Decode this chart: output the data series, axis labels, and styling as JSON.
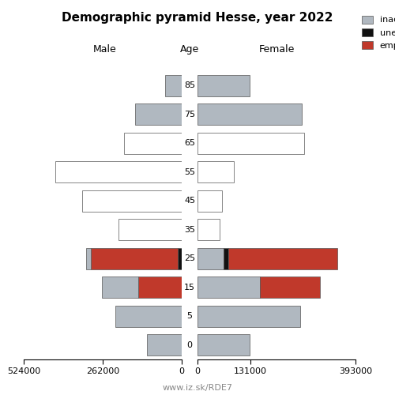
{
  "title": "Demographic pyramid Hesse, year 2022",
  "subtitle_left": "Male",
  "subtitle_center": "Age",
  "subtitle_right": "Female",
  "footer": "www.iz.sk/RDE7",
  "age_groups": [
    0,
    5,
    15,
    25,
    35,
    45,
    55,
    65,
    75,
    85
  ],
  "male": {
    "inactive": [
      115000,
      220000,
      120000,
      15000,
      210000,
      330000,
      420000,
      190000,
      155000,
      55000
    ],
    "unemployed": [
      0,
      0,
      0,
      12000,
      0,
      0,
      0,
      0,
      0,
      0
    ],
    "employed": [
      0,
      0,
      145000,
      290000,
      0,
      0,
      0,
      0,
      0,
      0
    ]
  },
  "female": {
    "inactive": [
      130000,
      255000,
      155000,
      65000,
      55000,
      60000,
      90000,
      265000,
      260000,
      130000
    ],
    "unemployed": [
      0,
      0,
      0,
      12000,
      0,
      0,
      0,
      0,
      0,
      0
    ],
    "employed": [
      0,
      0,
      150000,
      270000,
      0,
      0,
      0,
      0,
      0,
      0
    ]
  },
  "male_inactive_white": [
    false,
    false,
    false,
    false,
    true,
    true,
    true,
    true,
    false,
    false
  ],
  "female_inactive_white": [
    false,
    false,
    false,
    false,
    true,
    true,
    true,
    true,
    false,
    false
  ],
  "colors": {
    "inactive_grey": "#b0b8c0",
    "inactive_white": "#ffffff",
    "unemployed": "#111111",
    "employed": "#c0392b"
  },
  "xlim_male": 524000,
  "xlim_female": 393000,
  "xticks_male_vals": [
    -524000,
    -262000,
    0
  ],
  "xticks_male_labels": [
    "524000",
    "262000",
    "0"
  ],
  "xticks_female_vals": [
    0,
    131000,
    393000
  ],
  "xticks_female_labels": [
    "0",
    "131000",
    "393000"
  ],
  "bar_height": 0.75,
  "background_color": "#ffffff",
  "edge_color": "#555555",
  "edge_lw": 0.5
}
